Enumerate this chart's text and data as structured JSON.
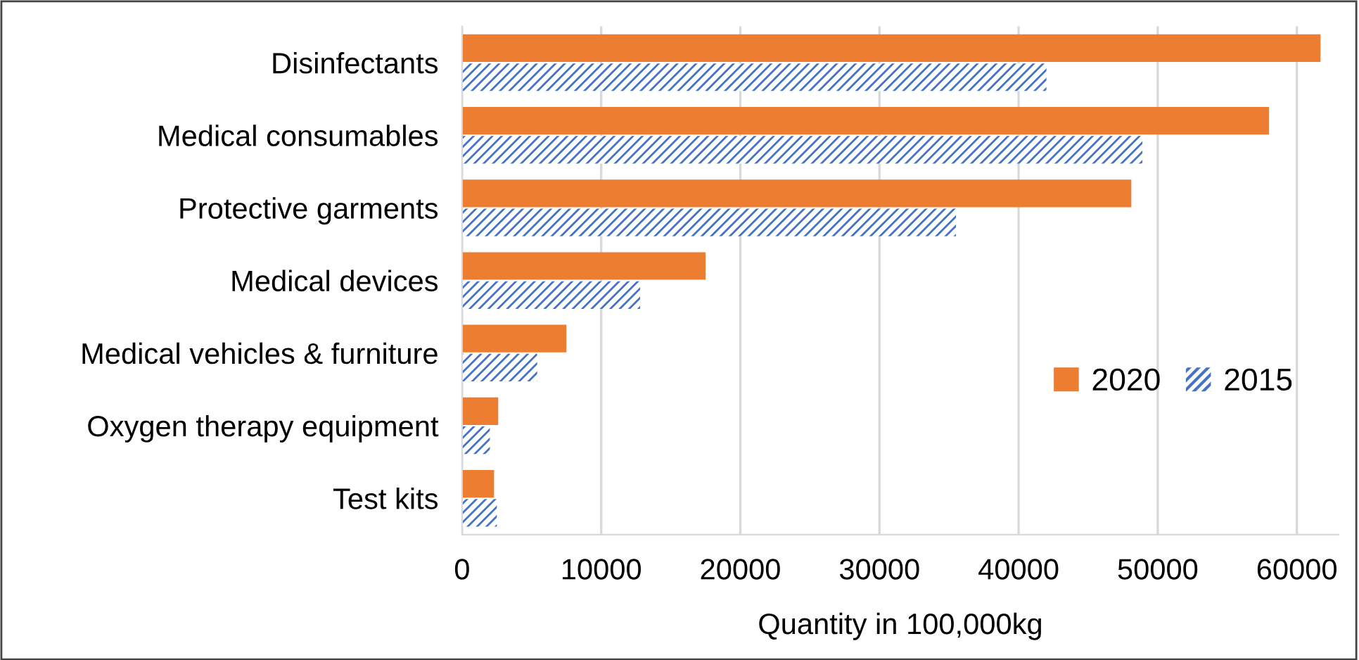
{
  "chart_data": {
    "type": "bar",
    "orientation": "horizontal",
    "xlabel": "Quantity in 100,000kg",
    "categories": [
      "Disinfectants",
      "Medical consumables",
      "Protective garments",
      "Medical devices",
      "Medical vehicles & furniture",
      "Oxygen therapy equipment",
      "Test kits"
    ],
    "series": [
      {
        "name": "2020",
        "color": "#ed7d31",
        "values": [
          61700,
          58000,
          48100,
          17500,
          7500,
          2600,
          2300
        ]
      },
      {
        "name": "2015",
        "color": "#4472c4",
        "values": [
          42000,
          48900,
          35500,
          12800,
          5400,
          2000,
          2500
        ]
      }
    ],
    "xlim": [
      0,
      63000
    ],
    "xticks": [
      0,
      10000,
      20000,
      30000,
      40000,
      50000,
      60000
    ],
    "grid": "x",
    "legend": "right"
  }
}
